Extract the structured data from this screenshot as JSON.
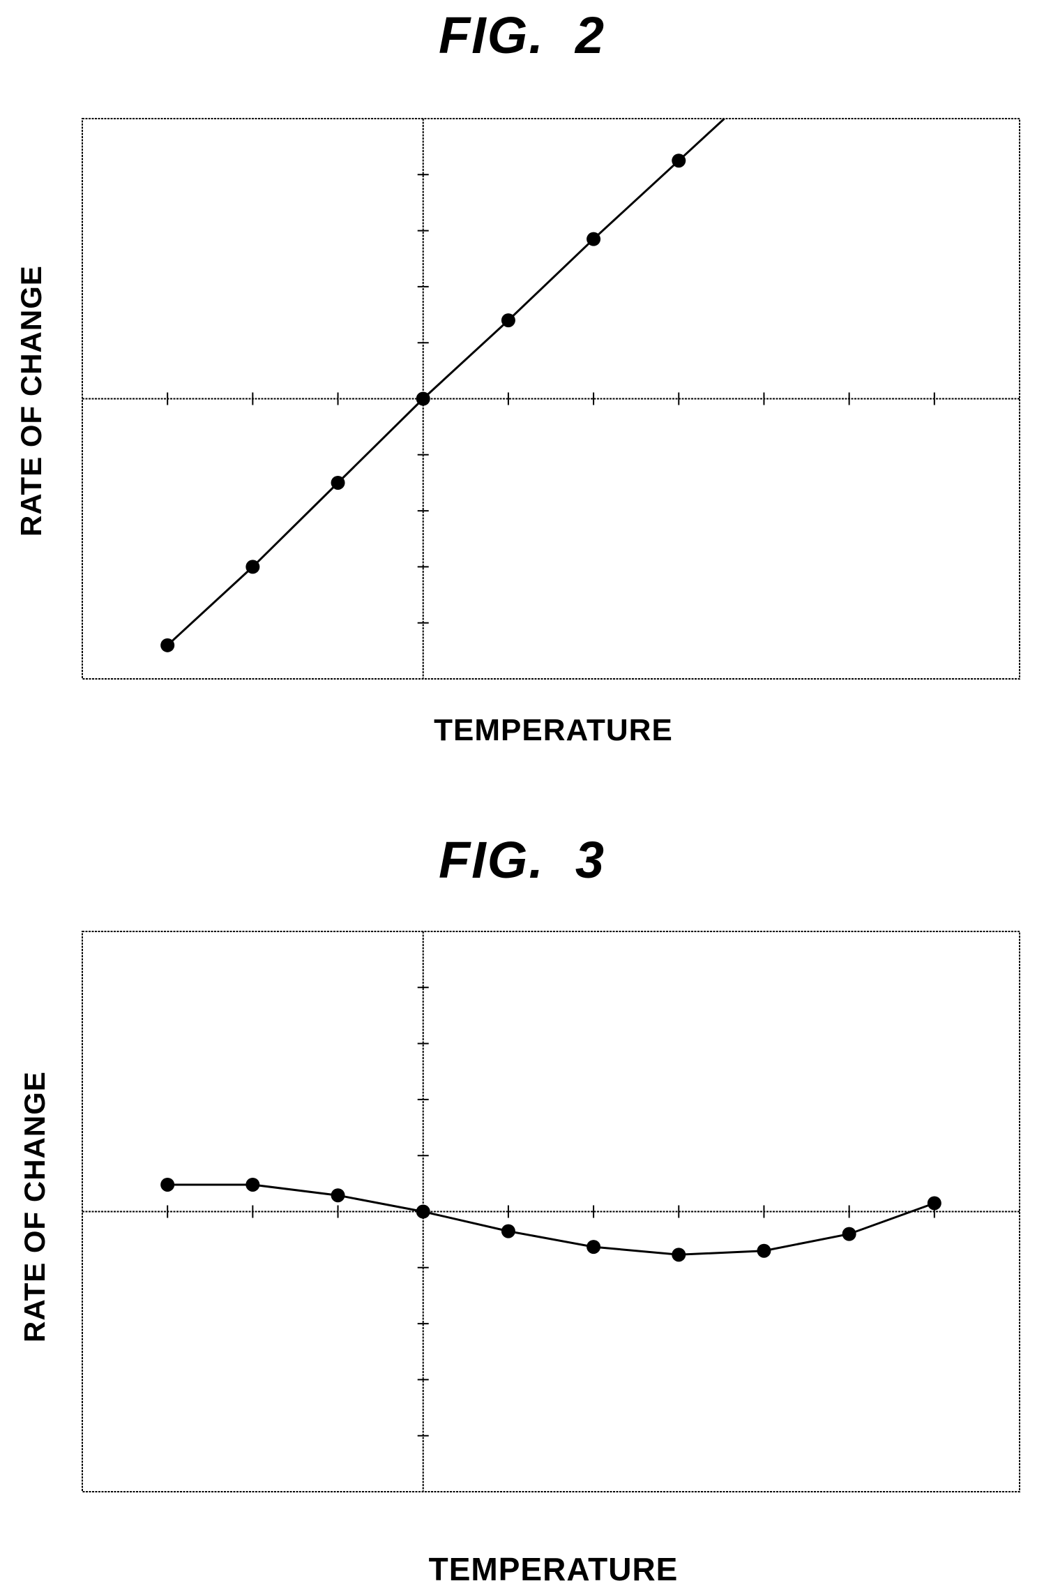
{
  "figures": [
    {
      "title_prefix": "FIG.",
      "title_number": "2",
      "chart_data": {
        "type": "line",
        "title": "FIG. 2",
        "xlabel": "TEMPERATURE",
        "ylabel": "RATE OF CHANGE",
        "x": [
          -3,
          -2,
          -1,
          0,
          1,
          2,
          3
        ],
        "series": [
          {
            "values": [
              -4.4,
              -3.0,
              -1.5,
              0.0,
              1.4,
              2.85,
              4.25
            ],
            "marker": "filled-circle",
            "extends_beyond_right": true
          }
        ],
        "xlim": [
          -4,
          7
        ],
        "ylim": [
          -5,
          5
        ],
        "x_ticks": [
          -3,
          -2,
          -1,
          1,
          2,
          3,
          4,
          5,
          6
        ],
        "y_ticks": [
          -4,
          -3,
          -2,
          -1,
          1,
          2,
          3,
          4
        ],
        "grid": false,
        "axes_cross_at_origin": true,
        "colors": {
          "line": "#000000",
          "marker": "#000000",
          "frame": "#000000"
        }
      }
    },
    {
      "title_prefix": "FIG.",
      "title_number": "3",
      "chart_data": {
        "type": "line",
        "title": "FIG. 3",
        "xlabel": "TEMPERATURE",
        "ylabel": "RATE OF CHANGE",
        "x": [
          -3,
          -2,
          -1,
          0,
          1,
          2,
          3,
          4,
          5,
          6
        ],
        "series": [
          {
            "values": [
              0.48,
              0.48,
              0.29,
              0.0,
              -0.35,
              -0.63,
              -0.77,
              -0.7,
              -0.4,
              0.15
            ],
            "marker": "filled-circle"
          }
        ],
        "xlim": [
          -4,
          7
        ],
        "ylim": [
          -5,
          5
        ],
        "x_ticks": [
          -3,
          -2,
          -1,
          1,
          2,
          3,
          4,
          5,
          6
        ],
        "y_ticks": [
          -4,
          -3,
          -2,
          -1,
          1,
          2,
          3,
          4
        ],
        "grid": false,
        "axes_cross_at_origin": true,
        "colors": {
          "line": "#000000",
          "marker": "#000000",
          "frame": "#000000"
        }
      }
    }
  ]
}
